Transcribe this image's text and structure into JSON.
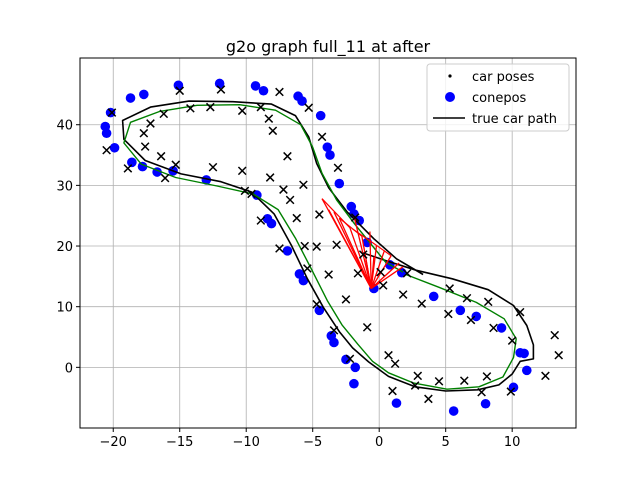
{
  "chart_data": {
    "type": "scatter",
    "title": "g2o graph full_11 at after",
    "xlabel": "",
    "ylabel": "",
    "xlim": [
      -22.5,
      14.8
    ],
    "ylim": [
      -10.0,
      51.0
    ],
    "xticks": [
      -20,
      -15,
      -10,
      -5,
      0,
      5,
      10
    ],
    "yticks": [
      0,
      10,
      20,
      30,
      40
    ],
    "grid": true,
    "legend_position": "top-right",
    "legend": [
      {
        "label": "car poses",
        "marker": "dot",
        "color": "#000000"
      },
      {
        "label": "conepos",
        "marker": "circle",
        "color": "#0000ff"
      },
      {
        "label": "true car path",
        "marker": "line",
        "color": "#000000"
      }
    ],
    "colors": {
      "cones": "#0000ff",
      "true_path": "#000000",
      "estimated_path": "#008000",
      "edges": "#ff0000",
      "markers_x": "#000000"
    },
    "conepos": [
      [
        -20.6,
        39.7
      ],
      [
        -20.5,
        38.6
      ],
      [
        -20.2,
        42.0
      ],
      [
        -19.9,
        36.2
      ],
      [
        -18.7,
        44.4
      ],
      [
        -18.6,
        33.8
      ],
      [
        -17.7,
        45.0
      ],
      [
        -17.8,
        33.1
      ],
      [
        -16.7,
        32.2
      ],
      [
        -15.5,
        32.4
      ],
      [
        -15.1,
        46.5
      ],
      [
        -13.0,
        30.9
      ],
      [
        -12.0,
        46.8
      ],
      [
        -9.3,
        46.4
      ],
      [
        -8.7,
        45.6
      ],
      [
        -9.2,
        28.4
      ],
      [
        -8.4,
        24.5
      ],
      [
        -8.1,
        23.7
      ],
      [
        -6.9,
        19.2
      ],
      [
        -6.1,
        44.7
      ],
      [
        -5.8,
        43.9
      ],
      [
        -6.0,
        15.4
      ],
      [
        -5.7,
        14.3
      ],
      [
        -4.4,
        41.5
      ],
      [
        -4.5,
        9.4
      ],
      [
        -3.9,
        36.3
      ],
      [
        -3.7,
        35.0
      ],
      [
        -3.6,
        5.2
      ],
      [
        -3.4,
        4.1
      ],
      [
        -3.0,
        30.3
      ],
      [
        -2.5,
        1.3
      ],
      [
        -2.1,
        26.5
      ],
      [
        -1.9,
        25.3
      ],
      [
        -1.8,
        0.0
      ],
      [
        -1.9,
        -2.7
      ],
      [
        -1.5,
        24.2
      ],
      [
        -0.9,
        20.6
      ],
      [
        -0.4,
        13.0
      ],
      [
        0.8,
        16.9
      ],
      [
        1.3,
        -5.9
      ],
      [
        1.7,
        15.6
      ],
      [
        4.1,
        11.7
      ],
      [
        5.6,
        -7.2
      ],
      [
        6.1,
        9.4
      ],
      [
        7.3,
        8.4
      ],
      [
        8.0,
        -6.0
      ],
      [
        9.2,
        6.5
      ],
      [
        10.1,
        -3.3
      ],
      [
        10.6,
        2.4
      ],
      [
        10.9,
        2.3
      ],
      [
        11.1,
        -0.5
      ]
    ],
    "cone_estimates": [
      [
        -20.1,
        42.0
      ],
      [
        -20.5,
        35.8
      ],
      [
        -18.9,
        32.8
      ],
      [
        -17.7,
        38.6
      ],
      [
        -17.6,
        36.4
      ],
      [
        -17.2,
        40.2
      ],
      [
        -16.4,
        34.8
      ],
      [
        -16.1,
        31.2
      ],
      [
        -16.2,
        41.8
      ],
      [
        -15.3,
        33.4
      ],
      [
        -15.0,
        45.6
      ],
      [
        -14.2,
        42.7
      ],
      [
        -12.7,
        42.9
      ],
      [
        -12.5,
        33.0
      ],
      [
        -11.9,
        45.8
      ],
      [
        -10.3,
        42.3
      ],
      [
        -9.6,
        28.6
      ],
      [
        -10.3,
        32.4
      ],
      [
        -10.1,
        29.1
      ],
      [
        -8.9,
        24.2
      ],
      [
        -8.9,
        42.9
      ],
      [
        -8.3,
        41.0
      ],
      [
        -8.2,
        31.3
      ],
      [
        -8.0,
        39.0
      ],
      [
        -7.5,
        19.6
      ],
      [
        -7.5,
        45.4
      ],
      [
        -7.2,
        29.3
      ],
      [
        -6.9,
        34.8
      ],
      [
        -6.7,
        27.6
      ],
      [
        -6.2,
        24.6
      ],
      [
        -5.7,
        30.1
      ],
      [
        -5.6,
        20.0
      ],
      [
        -5.4,
        16.3
      ],
      [
        -5.3,
        42.8
      ],
      [
        -4.7,
        10.4
      ],
      [
        -4.7,
        19.9
      ],
      [
        -4.5,
        25.2
      ],
      [
        -4.3,
        38.0
      ],
      [
        -3.8,
        15.3
      ],
      [
        -3.4,
        6.1
      ],
      [
        -3.1,
        32.9
      ],
      [
        -3.2,
        20.2
      ],
      [
        -2.5,
        11.2
      ],
      [
        -2.2,
        1.4
      ],
      [
        -1.8,
        24.7
      ],
      [
        -1.2,
        18.6
      ],
      [
        -1.6,
        15.5
      ],
      [
        -0.9,
        6.6
      ],
      [
        0.1,
        15.7
      ],
      [
        0.3,
        13.5
      ],
      [
        0.7,
        2.0
      ],
      [
        1.0,
        -3.9
      ],
      [
        1.2,
        0.6
      ],
      [
        1.8,
        12.0
      ],
      [
        2.1,
        15.5
      ],
      [
        2.7,
        -3.0
      ],
      [
        2.9,
        -1.4
      ],
      [
        3.2,
        10.5
      ],
      [
        3.7,
        -5.2
      ],
      [
        4.5,
        -2.3
      ],
      [
        5.2,
        8.8
      ],
      [
        5.3,
        13.0
      ],
      [
        6.4,
        -2.2
      ],
      [
        6.6,
        11.4
      ],
      [
        6.9,
        7.8
      ],
      [
        7.7,
        -4.1
      ],
      [
        8.1,
        -1.5
      ],
      [
        8.2,
        10.8
      ],
      [
        8.6,
        6.5
      ],
      [
        9.9,
        -4.0
      ],
      [
        10.0,
        4.4
      ],
      [
        10.6,
        9.1
      ],
      [
        12.5,
        -1.4
      ],
      [
        13.2,
        5.3
      ],
      [
        13.5,
        2.0
      ]
    ],
    "true_car_path": [
      [
        -1.4,
        19.0
      ],
      [
        0.5,
        17.6
      ],
      [
        2.8,
        16.0
      ],
      [
        5.5,
        14.6
      ],
      [
        8.2,
        12.8
      ],
      [
        10.1,
        10.2
      ],
      [
        11.1,
        6.9
      ],
      [
        11.6,
        3.7
      ],
      [
        11.6,
        1.4
      ],
      [
        10.6,
        1.0
      ],
      [
        10.0,
        -1.1
      ],
      [
        9.0,
        -2.9
      ],
      [
        7.4,
        -3.7
      ],
      [
        5.0,
        -3.9
      ],
      [
        2.7,
        -3.2
      ],
      [
        0.7,
        -1.5
      ],
      [
        -0.8,
        0.9
      ],
      [
        -2.0,
        3.2
      ],
      [
        -3.0,
        5.9
      ],
      [
        -4.2,
        9.9
      ],
      [
        -5.4,
        14.6
      ],
      [
        -6.6,
        20.1
      ],
      [
        -7.9,
        25.3
      ],
      [
        -9.6,
        28.9
      ],
      [
        -11.9,
        30.6
      ],
      [
        -14.9,
        31.9
      ],
      [
        -17.6,
        34.1
      ],
      [
        -19.2,
        37.6
      ],
      [
        -19.3,
        40.7
      ],
      [
        -17.2,
        42.9
      ],
      [
        -14.3,
        43.9
      ],
      [
        -11.0,
        43.8
      ],
      [
        -8.1,
        43.4
      ],
      [
        -6.3,
        41.5
      ],
      [
        -5.3,
        38.0
      ],
      [
        -4.7,
        33.6
      ],
      [
        -3.8,
        29.6
      ],
      [
        -2.4,
        25.6
      ],
      [
        -0.4,
        21.2
      ],
      [
        1.3,
        17.9
      ],
      [
        3.3,
        15.3
      ]
    ],
    "estimated_car_path": [
      [
        2.0,
        15.3
      ],
      [
        4.5,
        13.2
      ],
      [
        7.3,
        10.7
      ],
      [
        9.4,
        8.0
      ],
      [
        10.3,
        4.7
      ],
      [
        10.1,
        1.6
      ],
      [
        9.3,
        -1.6
      ],
      [
        7.5,
        -3.2
      ],
      [
        5.1,
        -3.6
      ],
      [
        2.6,
        -2.6
      ],
      [
        0.7,
        -0.9
      ],
      [
        -0.5,
        1.0
      ],
      [
        -1.6,
        3.8
      ],
      [
        -2.8,
        7.0
      ],
      [
        -3.9,
        11.0
      ],
      [
        -5.1,
        16.2
      ],
      [
        -6.3,
        21.3
      ],
      [
        -7.6,
        26.0
      ],
      [
        -9.5,
        28.6
      ],
      [
        -12.2,
        29.9
      ],
      [
        -15.3,
        31.3
      ],
      [
        -17.9,
        33.5
      ],
      [
        -19.2,
        37.0
      ],
      [
        -18.7,
        40.4
      ],
      [
        -16.5,
        42.2
      ],
      [
        -13.7,
        43.2
      ],
      [
        -10.5,
        43.3
      ],
      [
        -7.8,
        42.4
      ],
      [
        -5.9,
        40.0
      ],
      [
        -5.0,
        36.3
      ],
      [
        -4.3,
        32.0
      ],
      [
        -3.2,
        27.6
      ],
      [
        -1.8,
        23.5
      ],
      [
        -0.5,
        20.0
      ],
      [
        0.5,
        17.3
      ],
      [
        1.8,
        15.7
      ]
    ],
    "edge_hub": [
      -0.6,
      13.0
    ],
    "edge_targets": [
      [
        -4.3,
        27.8
      ],
      [
        -3.8,
        26.0
      ],
      [
        -3.0,
        24.6
      ],
      [
        -2.2,
        23.0
      ],
      [
        -1.3,
        21.6
      ],
      [
        -0.2,
        20.1
      ],
      [
        0.9,
        18.4
      ],
      [
        1.8,
        16.6
      ],
      [
        -1.9,
        25.0
      ],
      [
        -0.7,
        22.4
      ],
      [
        0.4,
        19.3
      ],
      [
        1.5,
        17.2
      ],
      [
        -3.4,
        25.6
      ],
      [
        -1.0,
        17.8
      ],
      [
        -0.4,
        18.2
      ]
    ],
    "edge_targets_b": [
      [
        -4.3,
        27.8
      ],
      [
        -3.0,
        24.6
      ],
      [
        -2.0,
        22.8
      ],
      [
        -0.2,
        20.1
      ],
      [
        1.0,
        18.6
      ]
    ]
  }
}
